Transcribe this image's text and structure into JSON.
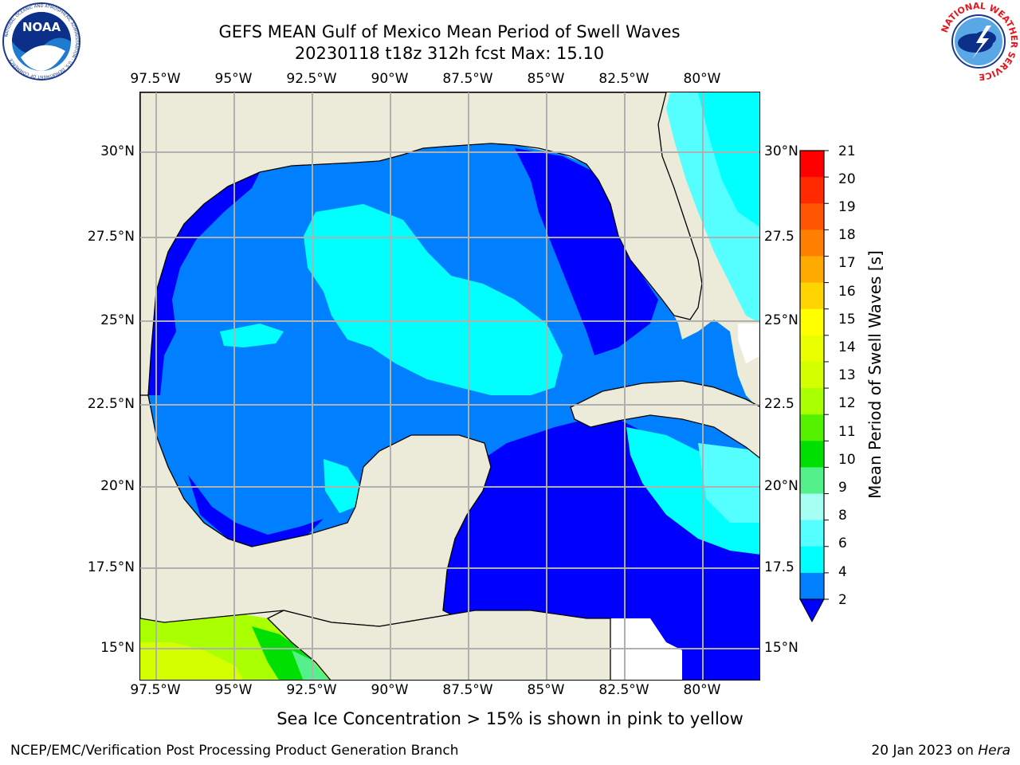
{
  "titles": {
    "line1": "GEFS MEAN Gulf of Mexico Mean Period of Swell Waves",
    "line2": "20230118 t18z 312h fcst   Max: 15.10"
  },
  "logos": {
    "left": "NOAA",
    "left_ring": "NATIONAL OCEANIC AND ATMOSPHERIC ADMINISTRATION · U.S. DEPARTMENT OF COMMERCE",
    "right_ring": "NATIONAL WEATHER SERVICE"
  },
  "map": {
    "lon_ticks": [
      "97.5°W",
      "95°W",
      "92.5°W",
      "90°W",
      "87.5°W",
      "85°W",
      "82.5°W",
      "80°W"
    ],
    "lat_ticks_left": [
      "30°N",
      "27.5°N",
      "25°N",
      "22.5°N",
      "20°N",
      "17.5°N",
      "15°N"
    ],
    "lat_ticks_right": [
      "30°N",
      "27.5",
      "25°N",
      "22.5",
      "20°N",
      "17.5",
      "15°N"
    ],
    "land_color": "#ecebd9",
    "grid": true
  },
  "colorbar": {
    "title": "Mean Period of Swell Waves [s]",
    "labels": [
      "21",
      "20",
      "19",
      "18",
      "17",
      "16",
      "15",
      "14",
      "13",
      "12",
      "11",
      "10",
      "9",
      "8",
      "6",
      "4",
      "2"
    ],
    "colors_top_to_bottom": [
      "#ff0000",
      "#ff2a00",
      "#ff5500",
      "#ff7f00",
      "#ffaa00",
      "#ffd400",
      "#ffff00",
      "#eaff00",
      "#d4ff00",
      "#aaff00",
      "#55f200",
      "#00e000",
      "#54f08c",
      "#a5fff2",
      "#55ffff",
      "#00ffff",
      "#0080ff"
    ],
    "extend_color": "#0000ff"
  },
  "note": "Sea Ice Concentration > 15% is shown in pink to yellow",
  "footer": {
    "left": "NCEP/EMC/Verification Post Processing Product Generation Branch",
    "date": "20 Jan 2023 on ",
    "host": "Hera"
  }
}
